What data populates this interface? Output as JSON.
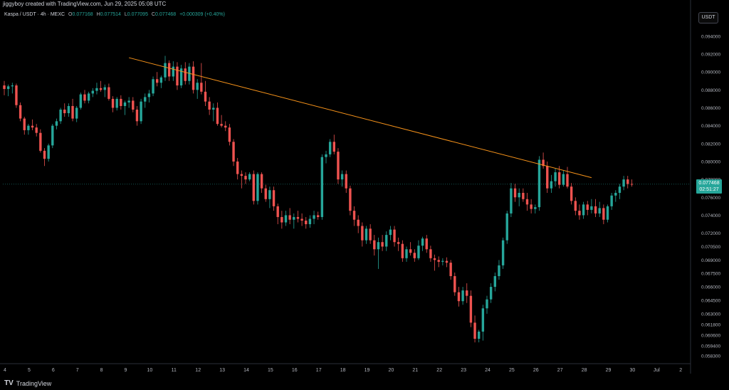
{
  "header": {
    "created": "jiggyboy created with TradingView.com, Jun 29, 2025 05:08 UTC",
    "symbol": "Kaspa / USDT · 4h · MEXC",
    "ohlc": [
      {
        "label": "O",
        "value": "0.077168"
      },
      {
        "label": "H",
        "value": "0.077514"
      },
      {
        "label": "L",
        "value": "0.077095"
      },
      {
        "label": "C",
        "value": "0.077468"
      }
    ],
    "change": "+0.000309 (+0.40%)",
    "currency": "USDT"
  },
  "last_price": {
    "value": "0.077468",
    "countdown": "02:51:27",
    "color": "#26a69a"
  },
  "colors": {
    "up": "#26a69a",
    "down": "#ef5350",
    "trendline": "#f7931a",
    "bg": "#000000",
    "grid": "#1a1a1a"
  },
  "footer": {
    "brand": "TradingView",
    "brand_icon": "tradingview-logo-icon"
  },
  "chart_data": {
    "type": "candlestick",
    "title": "",
    "xlabel": "",
    "ylabel": "",
    "ylim": [
      0.0575,
      0.0955
    ],
    "grid": false,
    "y_ticks": [
      "0.094000",
      "0.092000",
      "0.090000",
      "0.088000",
      "0.086000",
      "0.084000",
      "0.082000",
      "0.080000",
      "0.078000",
      "0.076000",
      "0.074000",
      "0.072000",
      "0.070500",
      "0.069000",
      "0.067500",
      "0.066000",
      "0.064500",
      "0.063000",
      "0.061800",
      "0.060600",
      "0.059400",
      "0.058300"
    ],
    "x_ticks": [
      "4",
      "5",
      "6",
      "7",
      "8",
      "9",
      "10",
      "11",
      "12",
      "13",
      "14",
      "15",
      "16",
      "17",
      "18",
      "19",
      "20",
      "21",
      "22",
      "23",
      "24",
      "25",
      "26",
      "27",
      "28",
      "29",
      "30",
      "Jul",
      "2"
    ],
    "trendline": {
      "from": {
        "bar": 31,
        "price": 0.0916
      },
      "to": {
        "bar": 146,
        "price": 0.0782
      }
    },
    "candles": [
      [
        0.0885,
        0.089,
        0.0874,
        0.0881
      ],
      [
        0.0881,
        0.0886,
        0.0873,
        0.0884
      ],
      [
        0.0884,
        0.0888,
        0.0876,
        0.0885
      ],
      [
        0.0885,
        0.0887,
        0.086,
        0.0863
      ],
      [
        0.0863,
        0.0866,
        0.0845,
        0.0848
      ],
      [
        0.0848,
        0.085,
        0.083,
        0.0835
      ],
      [
        0.0835,
        0.0842,
        0.083,
        0.084
      ],
      [
        0.084,
        0.0847,
        0.0835,
        0.0838
      ],
      [
        0.0838,
        0.0842,
        0.0828,
        0.0832
      ],
      [
        0.0832,
        0.0836,
        0.081,
        0.0812
      ],
      [
        0.0812,
        0.0815,
        0.0795,
        0.0803
      ],
      [
        0.0803,
        0.082,
        0.08,
        0.0818
      ],
      [
        0.0818,
        0.0842,
        0.0815,
        0.084
      ],
      [
        0.084,
        0.0848,
        0.0836,
        0.0845
      ],
      [
        0.0845,
        0.086,
        0.0842,
        0.0858
      ],
      [
        0.0858,
        0.0865,
        0.085,
        0.0854
      ],
      [
        0.0854,
        0.0865,
        0.085,
        0.0862
      ],
      [
        0.0862,
        0.087,
        0.0845,
        0.0848
      ],
      [
        0.0848,
        0.0862,
        0.0844,
        0.086
      ],
      [
        0.086,
        0.0877,
        0.0858,
        0.0875
      ],
      [
        0.0875,
        0.088,
        0.0865,
        0.0868
      ],
      [
        0.0868,
        0.0878,
        0.0865,
        0.0876
      ],
      [
        0.0876,
        0.0882,
        0.0872,
        0.0879
      ],
      [
        0.0879,
        0.0888,
        0.0875,
        0.0882
      ],
      [
        0.0882,
        0.089,
        0.0878,
        0.088
      ],
      [
        0.088,
        0.0886,
        0.0872,
        0.0883
      ],
      [
        0.0883,
        0.0887,
        0.0868,
        0.087
      ],
      [
        0.087,
        0.0873,
        0.0855,
        0.086
      ],
      [
        0.086,
        0.0872,
        0.0857,
        0.087
      ],
      [
        0.087,
        0.0874,
        0.0858,
        0.0862
      ],
      [
        0.0862,
        0.0868,
        0.0852,
        0.0866
      ],
      [
        0.0866,
        0.0872,
        0.086,
        0.0868
      ],
      [
        0.0868,
        0.0872,
        0.0855,
        0.0858
      ],
      [
        0.0858,
        0.0862,
        0.084,
        0.0845
      ],
      [
        0.0845,
        0.087,
        0.0842,
        0.0867
      ],
      [
        0.0867,
        0.0876,
        0.086,
        0.0872
      ],
      [
        0.0872,
        0.088,
        0.0866,
        0.0876
      ],
      [
        0.0876,
        0.0895,
        0.0873,
        0.0892
      ],
      [
        0.0892,
        0.09,
        0.0884,
        0.0888
      ],
      [
        0.0888,
        0.0896,
        0.0882,
        0.0894
      ],
      [
        0.0894,
        0.0918,
        0.089,
        0.091
      ],
      [
        0.091,
        0.0913,
        0.089,
        0.0895
      ],
      [
        0.0895,
        0.0912,
        0.089,
        0.0906
      ],
      [
        0.0906,
        0.0911,
        0.088,
        0.0885
      ],
      [
        0.0885,
        0.0908,
        0.0882,
        0.0904
      ],
      [
        0.0904,
        0.0911,
        0.0886,
        0.089
      ],
      [
        0.089,
        0.091,
        0.0886,
        0.0906
      ],
      [
        0.0906,
        0.0912,
        0.0876,
        0.088
      ],
      [
        0.088,
        0.0892,
        0.087,
        0.0888
      ],
      [
        0.0888,
        0.091,
        0.0875,
        0.0878
      ],
      [
        0.0878,
        0.089,
        0.0862,
        0.0867
      ],
      [
        0.0867,
        0.0872,
        0.0852,
        0.0858
      ],
      [
        0.0858,
        0.0865,
        0.0845,
        0.086
      ],
      [
        0.086,
        0.0866,
        0.084,
        0.0842
      ],
      [
        0.0842,
        0.0852,
        0.0838,
        0.084
      ],
      [
        0.084,
        0.0845,
        0.0834,
        0.0838
      ],
      [
        0.0838,
        0.0842,
        0.0818,
        0.0822
      ],
      [
        0.0822,
        0.0825,
        0.0795,
        0.08
      ],
      [
        0.08,
        0.0804,
        0.078,
        0.0786
      ],
      [
        0.0786,
        0.079,
        0.077,
        0.0784
      ],
      [
        0.0784,
        0.0788,
        0.0775,
        0.078
      ],
      [
        0.078,
        0.0788,
        0.0778,
        0.0786
      ],
      [
        0.0786,
        0.079,
        0.0752,
        0.0756
      ],
      [
        0.0756,
        0.0788,
        0.0752,
        0.0786
      ],
      [
        0.0786,
        0.0788,
        0.0765,
        0.077
      ],
      [
        0.077,
        0.0774,
        0.0755,
        0.0758
      ],
      [
        0.0758,
        0.0772,
        0.0748,
        0.0768
      ],
      [
        0.0768,
        0.0772,
        0.0745,
        0.075
      ],
      [
        0.075,
        0.0753,
        0.073,
        0.0738
      ],
      [
        0.0738,
        0.0745,
        0.0725,
        0.0732
      ],
      [
        0.0732,
        0.0745,
        0.0728,
        0.074
      ],
      [
        0.074,
        0.0748,
        0.073,
        0.0735
      ],
      [
        0.0735,
        0.0742,
        0.0725,
        0.0738
      ],
      [
        0.0738,
        0.0745,
        0.0732,
        0.0736
      ],
      [
        0.0736,
        0.0742,
        0.0728,
        0.0734
      ],
      [
        0.0734,
        0.0738,
        0.0725,
        0.073
      ],
      [
        0.073,
        0.074,
        0.0726,
        0.0736
      ],
      [
        0.0736,
        0.0745,
        0.073,
        0.074
      ],
      [
        0.074,
        0.0744,
        0.0735,
        0.0738
      ],
      [
        0.0738,
        0.0808,
        0.0735,
        0.0805
      ],
      [
        0.0805,
        0.0812,
        0.0798,
        0.0808
      ],
      [
        0.0808,
        0.0825,
        0.0805,
        0.0822
      ],
      [
        0.0822,
        0.083,
        0.0808,
        0.0811
      ],
      [
        0.0811,
        0.0815,
        0.0775,
        0.078
      ],
      [
        0.078,
        0.079,
        0.0772,
        0.0786
      ],
      [
        0.0786,
        0.079,
        0.0765,
        0.077
      ],
      [
        0.077,
        0.0773,
        0.074,
        0.0745
      ],
      [
        0.0745,
        0.075,
        0.0728,
        0.0735
      ],
      [
        0.0735,
        0.074,
        0.072,
        0.0728
      ],
      [
        0.0728,
        0.0732,
        0.0705,
        0.0712
      ],
      [
        0.0712,
        0.0728,
        0.0708,
        0.0725
      ],
      [
        0.0725,
        0.073,
        0.0708,
        0.0712
      ],
      [
        0.0712,
        0.0718,
        0.0695,
        0.0702
      ],
      [
        0.0702,
        0.0715,
        0.068,
        0.071
      ],
      [
        0.071,
        0.0718,
        0.07,
        0.0705
      ],
      [
        0.0705,
        0.0722,
        0.07,
        0.0718
      ],
      [
        0.0718,
        0.0728,
        0.0712,
        0.0724
      ],
      [
        0.0724,
        0.0728,
        0.0705,
        0.071
      ],
      [
        0.071,
        0.0715,
        0.07,
        0.0708
      ],
      [
        0.0708,
        0.0712,
        0.0688,
        0.0692
      ],
      [
        0.0692,
        0.0705,
        0.0688,
        0.0702
      ],
      [
        0.0702,
        0.071,
        0.0695,
        0.0698
      ],
      [
        0.0698,
        0.0702,
        0.0688,
        0.0692
      ],
      [
        0.0692,
        0.0712,
        0.069,
        0.0706
      ],
      [
        0.0706,
        0.0716,
        0.07,
        0.0714
      ],
      [
        0.0714,
        0.0718,
        0.0698,
        0.0702
      ],
      [
        0.0702,
        0.0706,
        0.0688,
        0.0692
      ],
      [
        0.0692,
        0.0696,
        0.0678,
        0.069
      ],
      [
        0.069,
        0.0694,
        0.0682,
        0.0688
      ],
      [
        0.0688,
        0.0692,
        0.0684,
        0.0689
      ],
      [
        0.0689,
        0.0693,
        0.0682,
        0.0687
      ],
      [
        0.0687,
        0.069,
        0.0668,
        0.0672
      ],
      [
        0.0672,
        0.0676,
        0.065,
        0.0654
      ],
      [
        0.0654,
        0.066,
        0.0638,
        0.0644
      ],
      [
        0.0644,
        0.066,
        0.064,
        0.0656
      ],
      [
        0.0656,
        0.0664,
        0.0642,
        0.065
      ],
      [
        0.065,
        0.0656,
        0.0615,
        0.062
      ],
      [
        0.062,
        0.0628,
        0.0598,
        0.0602
      ],
      [
        0.0602,
        0.0612,
        0.0598,
        0.061
      ],
      [
        0.061,
        0.064,
        0.06,
        0.0636
      ],
      [
        0.0636,
        0.065,
        0.063,
        0.0646
      ],
      [
        0.0646,
        0.0664,
        0.0642,
        0.066
      ],
      [
        0.066,
        0.0676,
        0.0655,
        0.0672
      ],
      [
        0.0672,
        0.069,
        0.0668,
        0.0684
      ],
      [
        0.0684,
        0.0715,
        0.068,
        0.0712
      ],
      [
        0.0712,
        0.0745,
        0.0708,
        0.0742
      ],
      [
        0.0742,
        0.0776,
        0.0738,
        0.077
      ],
      [
        0.077,
        0.0775,
        0.0755,
        0.076
      ],
      [
        0.076,
        0.077,
        0.075,
        0.0765
      ],
      [
        0.0765,
        0.077,
        0.0755,
        0.0758
      ],
      [
        0.0758,
        0.0765,
        0.0745,
        0.0752
      ],
      [
        0.0752,
        0.0758,
        0.0742,
        0.0747
      ],
      [
        0.0747,
        0.0752,
        0.0742,
        0.0749
      ],
      [
        0.0749,
        0.0806,
        0.0745,
        0.0802
      ],
      [
        0.0802,
        0.081,
        0.0792,
        0.0795
      ],
      [
        0.0795,
        0.08,
        0.0765,
        0.077
      ],
      [
        0.077,
        0.0785,
        0.0765,
        0.0778
      ],
      [
        0.0778,
        0.0792,
        0.0772,
        0.0788
      ],
      [
        0.0788,
        0.0795,
        0.077,
        0.0774
      ],
      [
        0.0774,
        0.079,
        0.0772,
        0.0786
      ],
      [
        0.0786,
        0.0794,
        0.077,
        0.0772
      ],
      [
        0.0772,
        0.0776,
        0.0752,
        0.0756
      ],
      [
        0.0756,
        0.076,
        0.074,
        0.0745
      ],
      [
        0.0745,
        0.0752,
        0.0735,
        0.074
      ],
      [
        0.074,
        0.0755,
        0.0736,
        0.0752
      ],
      [
        0.0752,
        0.0756,
        0.074,
        0.0746
      ],
      [
        0.0746,
        0.0758,
        0.0742,
        0.075
      ],
      [
        0.075,
        0.0758,
        0.0738,
        0.0742
      ],
      [
        0.0742,
        0.0755,
        0.0738,
        0.0748
      ],
      [
        0.0748,
        0.0752,
        0.073,
        0.0735
      ],
      [
        0.0735,
        0.0752,
        0.0732,
        0.075
      ],
      [
        0.075,
        0.0765,
        0.0746,
        0.0762
      ],
      [
        0.0762,
        0.0768,
        0.0755,
        0.0765
      ],
      [
        0.0765,
        0.0775,
        0.0758,
        0.0772
      ],
      [
        0.0772,
        0.0784,
        0.0768,
        0.078
      ],
      [
        0.078,
        0.0784,
        0.077,
        0.0775
      ],
      [
        0.0775,
        0.078,
        0.0772,
        0.07747
      ]
    ]
  }
}
